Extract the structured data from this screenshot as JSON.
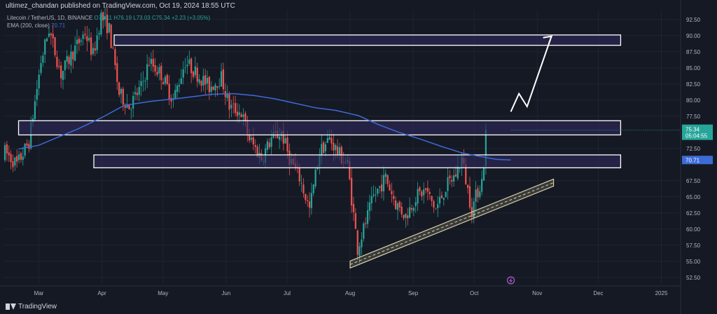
{
  "header": {
    "attribution": "ultimez_chandan published on TradingView.com, Oct 19, 2024 18:55 UTC",
    "symbol": "Litecoin / TetherUS, 1D, BINANCE",
    "ohlc": "O73.11 H76.19 L73.03 C75.34 +2.23 (+3.05%)",
    "ema_label": "EMA (200, close)",
    "ema_value": "70.71"
  },
  "footer": {
    "brand": "TradingView"
  },
  "price_badge": {
    "price": "75.34",
    "countdown": "05:04:55"
  },
  "ema_badge": "70.71",
  "colors": {
    "bg": "#151924",
    "up": "#26a69a",
    "down": "#ef5350",
    "ema": "#3d6bd6",
    "zone_fill": "#2e2a5c",
    "channel": "#d8d0a4"
  },
  "chart_data": {
    "type": "candlestick",
    "symbol": "LTC/USDT",
    "timeframe": "1D",
    "x_tick_labels": [
      "Mar",
      "Apr",
      "May",
      "Jun",
      "Jul",
      "Aug",
      "Sep",
      "Oct",
      "Nov",
      "Dec",
      "2025"
    ],
    "y_tick_labels": [
      "92.50",
      "90.00",
      "87.50",
      "85.00",
      "82.50",
      "80.00",
      "77.50",
      "72.50",
      "67.50",
      "65.00",
      "62.50",
      "60.00",
      "57.50",
      "55.00",
      "52.50"
    ],
    "ylim": [
      51.5,
      94.0
    ],
    "grid": true,
    "ema_200": [
      {
        "x": "2024-02-20",
        "y": 72.4
      },
      {
        "x": "2024-03-01",
        "y": 73.0
      },
      {
        "x": "2024-03-10",
        "y": 74.2
      },
      {
        "x": "2024-03-20",
        "y": 75.5
      },
      {
        "x": "2024-04-01",
        "y": 77.3
      },
      {
        "x": "2024-04-12",
        "y": 79.2
      },
      {
        "x": "2024-04-25",
        "y": 79.8
      },
      {
        "x": "2024-05-10",
        "y": 80.3
      },
      {
        "x": "2024-05-25",
        "y": 80.9
      },
      {
        "x": "2024-06-05",
        "y": 81.0
      },
      {
        "x": "2024-06-15",
        "y": 80.7
      },
      {
        "x": "2024-06-25",
        "y": 80.2
      },
      {
        "x": "2024-07-05",
        "y": 79.5
      },
      {
        "x": "2024-07-15",
        "y": 78.8
      },
      {
        "x": "2024-07-25",
        "y": 78.4
      },
      {
        "x": "2024-08-05",
        "y": 77.6
      },
      {
        "x": "2024-08-15",
        "y": 76.2
      },
      {
        "x": "2024-08-25",
        "y": 75.0
      },
      {
        "x": "2024-09-05",
        "y": 73.9
      },
      {
        "x": "2024-09-15",
        "y": 72.8
      },
      {
        "x": "2024-09-25",
        "y": 71.8
      },
      {
        "x": "2024-10-05",
        "y": 71.2
      },
      {
        "x": "2024-10-12",
        "y": 70.8
      },
      {
        "x": "2024-10-19",
        "y": 70.71
      }
    ],
    "zones": [
      {
        "from": "2024-04-07",
        "to": "2024-12-12",
        "low": 88.5,
        "high": 90.1
      },
      {
        "from": "2024-02-20",
        "to": "2024-12-12",
        "low": 74.6,
        "high": 76.8
      },
      {
        "from": "2024-03-28",
        "to": "2024-12-12",
        "low": 69.5,
        "high": 71.5
      }
    ],
    "rising_channel": {
      "from": {
        "x": "2024-08-01",
        "y": 54.5
      },
      "to": {
        "x": "2024-11-09",
        "y": 67.2
      }
    },
    "projection_arrow": [
      {
        "x": "2024-10-19",
        "y": 78.2
      },
      {
        "x": "2024-10-23",
        "y": 81.0
      },
      {
        "x": "2024-10-27",
        "y": 79.0
      },
      {
        "x": "2024-11-08",
        "y": 89.9
      }
    ],
    "last_close": 75.34,
    "candle_count": 241
  }
}
